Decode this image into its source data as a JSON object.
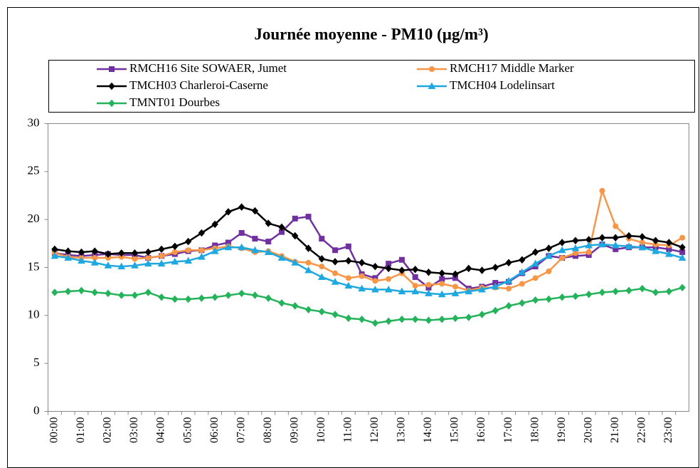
{
  "chart_data": {
    "type": "line",
    "title": "Journée moyenne - PM10 (µg/m³)",
    "categories": [
      "00:00",
      null,
      "01:00",
      null,
      "02:00",
      null,
      "03:00",
      null,
      "04:00",
      null,
      "05:00",
      null,
      "06:00",
      null,
      "07:00",
      null,
      "08:00",
      null,
      "09:00",
      null,
      "10:00",
      null,
      "11:00",
      null,
      "12:00",
      null,
      "13:00",
      null,
      "14:00",
      null,
      "15:00",
      null,
      "16:00",
      null,
      "17:00",
      null,
      "18:00",
      null,
      "19:00",
      null,
      "20:00",
      null,
      "21:00",
      null,
      "22:00",
      null,
      "23:00",
      null
    ],
    "series": [
      {
        "name": "RMCH16 Site SOWAER, Jumet",
        "color": "#7030a0",
        "marker": "square",
        "values": [
          16.5,
          16.3,
          16.2,
          16.3,
          16.4,
          16.3,
          16.3,
          16.0,
          16.2,
          16.4,
          16.7,
          16.8,
          17.3,
          17.6,
          18.6,
          18.0,
          17.7,
          18.7,
          20.1,
          20.3,
          18.0,
          16.8,
          17.2,
          14.3,
          13.9,
          15.4,
          15.8,
          14.0,
          12.9,
          13.8,
          13.9,
          12.8,
          13.0,
          13.4,
          13.5,
          14.4,
          15.1,
          16.2,
          16.0,
          16.2,
          16.3,
          17.4,
          16.9,
          17.1,
          17.1,
          17.1,
          16.9,
          16.6
        ]
      },
      {
        "name": "RMCH17 Middle Marker",
        "color": "#f79646",
        "marker": "circle",
        "values": [
          16.5,
          16.1,
          16.0,
          16.0,
          16.0,
          16.1,
          15.9,
          16.0,
          16.2,
          16.6,
          16.8,
          16.8,
          17.0,
          17.2,
          17.0,
          16.6,
          16.7,
          16.2,
          15.6,
          15.5,
          15.1,
          14.4,
          13.9,
          14.1,
          13.6,
          13.8,
          14.4,
          13.1,
          13.2,
          13.3,
          13.0,
          12.6,
          12.9,
          12.9,
          12.8,
          13.3,
          13.9,
          14.6,
          16.0,
          16.5,
          16.6,
          23.0,
          19.3,
          18.0,
          17.6,
          17.4,
          17.3,
          18.1
        ]
      },
      {
        "name": "TMCH03 Charleroi-Caserne",
        "color": "#000000",
        "marker": "diamond",
        "values": [
          16.9,
          16.7,
          16.6,
          16.7,
          16.4,
          16.5,
          16.5,
          16.6,
          16.9,
          17.2,
          17.7,
          18.6,
          19.5,
          20.8,
          21.3,
          20.9,
          19.6,
          19.2,
          18.3,
          17.0,
          15.9,
          15.6,
          15.7,
          15.5,
          15.1,
          14.9,
          14.7,
          14.8,
          14.5,
          14.4,
          14.3,
          14.9,
          14.7,
          15.0,
          15.5,
          15.8,
          16.6,
          17.0,
          17.6,
          17.8,
          17.9,
          18.1,
          18.1,
          18.3,
          18.2,
          17.8,
          17.6,
          17.1
        ]
      },
      {
        "name": "TMCH04 Lodelinsart",
        "color": "#1fa8e0",
        "marker": "triangle",
        "values": [
          16.2,
          16.0,
          15.7,
          15.5,
          15.2,
          15.1,
          15.2,
          15.4,
          15.4,
          15.6,
          15.7,
          16.1,
          16.7,
          17.1,
          17.1,
          16.8,
          16.6,
          16.0,
          15.5,
          14.7,
          14.0,
          13.5,
          13.1,
          12.8,
          12.7,
          12.7,
          12.5,
          12.5,
          12.3,
          12.2,
          12.3,
          12.5,
          12.7,
          13.0,
          13.6,
          14.5,
          15.4,
          16.2,
          16.8,
          17.0,
          17.3,
          17.4,
          17.3,
          17.2,
          17.1,
          16.7,
          16.4,
          16.0
        ]
      },
      {
        "name": "TMNT01 Dourbes",
        "color": "#24b35a",
        "marker": "diamond",
        "values": [
          12.4,
          12.5,
          12.6,
          12.4,
          12.3,
          12.1,
          12.1,
          12.4,
          11.9,
          11.7,
          11.7,
          11.8,
          11.9,
          12.1,
          12.3,
          12.1,
          11.8,
          11.3,
          11.0,
          10.6,
          10.4,
          10.1,
          9.7,
          9.6,
          9.2,
          9.4,
          9.6,
          9.6,
          9.5,
          9.6,
          9.7,
          9.8,
          10.1,
          10.5,
          11.0,
          11.3,
          11.6,
          11.7,
          11.9,
          12.0,
          12.2,
          12.4,
          12.5,
          12.6,
          12.8,
          12.4,
          12.5,
          12.9
        ]
      }
    ],
    "ylim": [
      0,
      30
    ],
    "yticks": [
      0,
      5,
      10,
      15,
      20,
      25,
      30
    ],
    "grid": false
  }
}
